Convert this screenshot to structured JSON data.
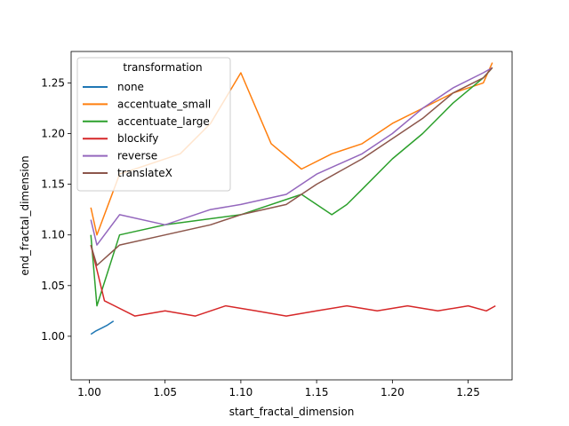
{
  "chart_data": {
    "type": "line",
    "xlabel": "start_fractal_dimension",
    "ylabel": "end_fractal_dimension",
    "xlim": [
      0.988,
      1.279
    ],
    "ylim": [
      0.957,
      1.281
    ],
    "x_ticks": [
      1.0,
      1.05,
      1.1,
      1.15,
      1.2,
      1.25
    ],
    "x_tick_labels": [
      "1.00",
      "1.05",
      "1.10",
      "1.15",
      "1.20",
      "1.25"
    ],
    "y_ticks": [
      1.0,
      1.05,
      1.1,
      1.15,
      1.2,
      1.25
    ],
    "y_tick_labels": [
      "1.00",
      "1.05",
      "1.10",
      "1.15",
      "1.20",
      "1.25"
    ],
    "legend": {
      "title": "transformation",
      "position": "upper-left"
    },
    "series": [
      {
        "name": "none",
        "color": "#1f77b4",
        "x": [
          1.001,
          1.004,
          1.008,
          1.012,
          1.016
        ],
        "y": [
          1.002,
          1.005,
          1.008,
          1.011,
          1.015
        ]
      },
      {
        "name": "accentuate_small",
        "color": "#ff7f0e",
        "x": [
          1.001,
          1.005,
          1.01,
          1.02,
          1.04,
          1.06,
          1.08,
          1.1,
          1.12,
          1.14,
          1.16,
          1.18,
          1.2,
          1.22,
          1.24,
          1.26,
          1.266
        ],
        "y": [
          1.127,
          1.1,
          1.12,
          1.16,
          1.17,
          1.18,
          1.21,
          1.26,
          1.19,
          1.165,
          1.18,
          1.19,
          1.21,
          1.225,
          1.24,
          1.25,
          1.27
        ]
      },
      {
        "name": "accentuate_large",
        "color": "#2ca02c",
        "x": [
          1.001,
          1.005,
          1.02,
          1.05,
          1.1,
          1.14,
          1.16,
          1.17,
          1.18,
          1.2,
          1.22,
          1.24,
          1.26,
          1.266
        ],
        "y": [
          1.1,
          1.03,
          1.1,
          1.11,
          1.12,
          1.14,
          1.12,
          1.13,
          1.145,
          1.175,
          1.2,
          1.23,
          1.255,
          1.265
        ]
      },
      {
        "name": "blockify",
        "color": "#d62728",
        "x": [
          1.001,
          1.01,
          1.03,
          1.05,
          1.07,
          1.09,
          1.11,
          1.13,
          1.15,
          1.17,
          1.19,
          1.21,
          1.23,
          1.25,
          1.262,
          1.268
        ],
        "y": [
          1.09,
          1.035,
          1.02,
          1.025,
          1.02,
          1.03,
          1.025,
          1.02,
          1.025,
          1.03,
          1.025,
          1.03,
          1.025,
          1.03,
          1.025,
          1.03
        ]
      },
      {
        "name": "reverse",
        "color": "#9467bd",
        "x": [
          1.001,
          1.005,
          1.02,
          1.05,
          1.08,
          1.1,
          1.13,
          1.15,
          1.18,
          1.2,
          1.22,
          1.24,
          1.26,
          1.266
        ],
        "y": [
          1.115,
          1.09,
          1.12,
          1.11,
          1.125,
          1.13,
          1.14,
          1.16,
          1.18,
          1.2,
          1.225,
          1.245,
          1.26,
          1.265
        ]
      },
      {
        "name": "translateX",
        "color": "#8c564b",
        "x": [
          1.001,
          1.005,
          1.02,
          1.05,
          1.08,
          1.1,
          1.13,
          1.15,
          1.18,
          1.2,
          1.22,
          1.24,
          1.26,
          1.266
        ],
        "y": [
          1.09,
          1.07,
          1.09,
          1.1,
          1.11,
          1.12,
          1.13,
          1.15,
          1.175,
          1.195,
          1.215,
          1.24,
          1.255,
          1.265
        ]
      }
    ]
  }
}
